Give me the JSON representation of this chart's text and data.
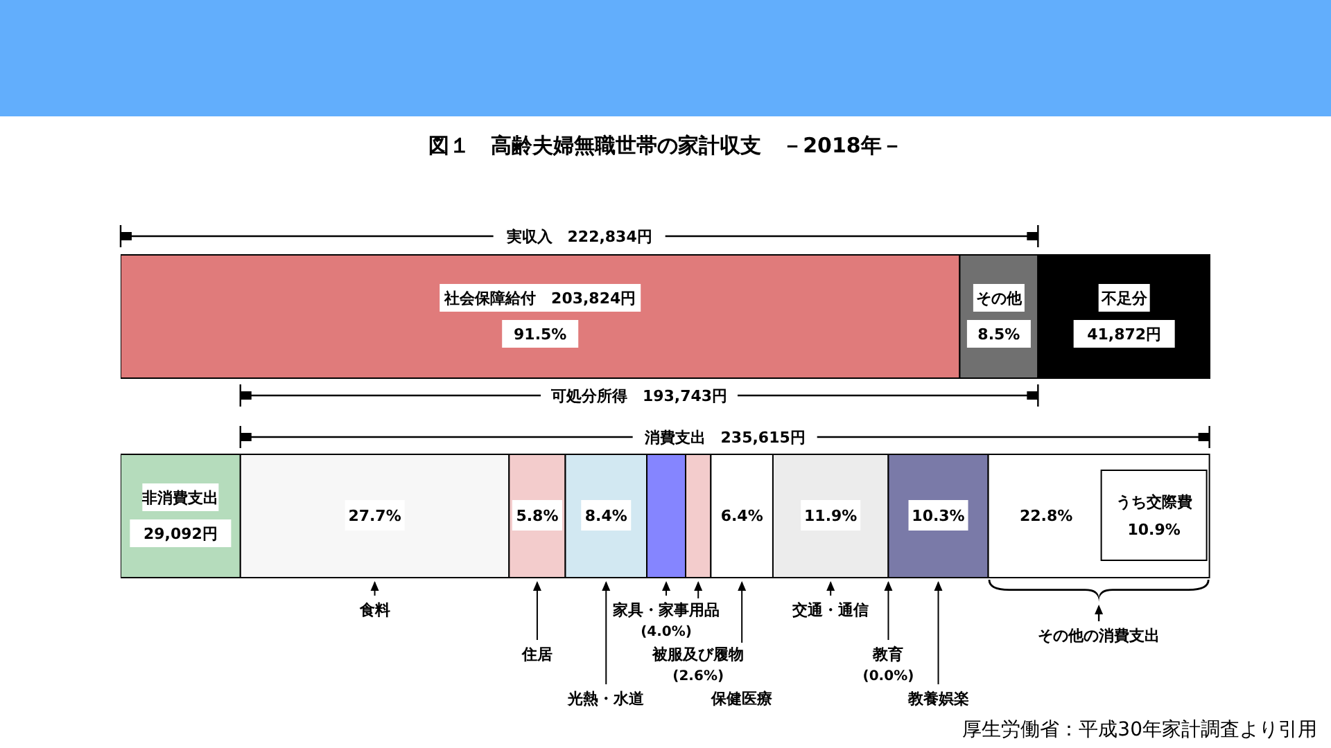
{
  "chart_data": {
    "type": "bar",
    "orientation": "horizontal",
    "stacked": true,
    "title": "図１　高齢夫婦無職世帯の家計収支　－2018年－",
    "categories": [
      null,
      null
    ],
    "series": [
      {
        "name": "社会保障給付",
        "color": "#e07b7b",
        "values": [
          203824,
          null
        ],
        "value_labels": [
          "203,824円\n91.5%",
          null
        ]
      },
      {
        "name": "その他\n8.5%",
        "color": "#707070",
        "values": [
          19010,
          null
        ]
      },
      {
        "name": "不足分",
        "color": "#000000",
        "values": [
          41872,
          null
        ],
        "value_labels": [
          "41,872円",
          null
        ]
      },
      {
        "name": "非消費支出",
        "color": "#b5dcbc",
        "values": [
          null,
          29092
        ],
        "value_labels": [
          null,
          "29,092円"
        ]
      },
      {
        "name": "食料",
        "color": "#f7f7f7",
        "values": [
          null,
          65265
        ]
      },
      {
        "name": "住居",
        "color": "#f3cccc",
        "values": [
          null,
          13666
        ]
      },
      {
        "name": "光熱・水道",
        "color": "#d2e8f2",
        "values": [
          null,
          19792
        ]
      },
      {
        "name": "家具・家事用品\n(4.0%)",
        "color": "#8585ff",
        "values": [
          null,
          9425
        ]
      },
      {
        "name": "被服及び履物\n(2.6%)",
        "color": "#f3cccc",
        "values": [
          null,
          6126
        ]
      },
      {
        "name": "保健医療",
        "color": "#ffffff",
        "values": [
          null,
          15079
        ]
      },
      {
        "name": "交通・通信",
        "color": "#ececec",
        "values": [
          null,
          28038
        ]
      },
      {
        "name": "教育\n(0.0%)",
        "values": [
          null,
          0
        ]
      },
      {
        "name": "教養娯楽",
        "color": "#7a7aa8",
        "values": [
          null,
          24268
        ]
      },
      {
        "name": "その他の消費支出",
        "color": "#ffffff",
        "values": [
          null,
          53720
        ]
      }
    ],
    "legend": "bottom",
    "annotations": [
      "実収入　222,834円",
      "可処分所得　193,743円",
      "消費支出　235,615円",
      "27.7%",
      "5.8%",
      "8.4%",
      "6.4%",
      "11.9%",
      "10.3%",
      "22.8%",
      "うち交際費\n10.9%",
      "厚生労働省：平成30年家計調査より引用"
    ]
  }
}
